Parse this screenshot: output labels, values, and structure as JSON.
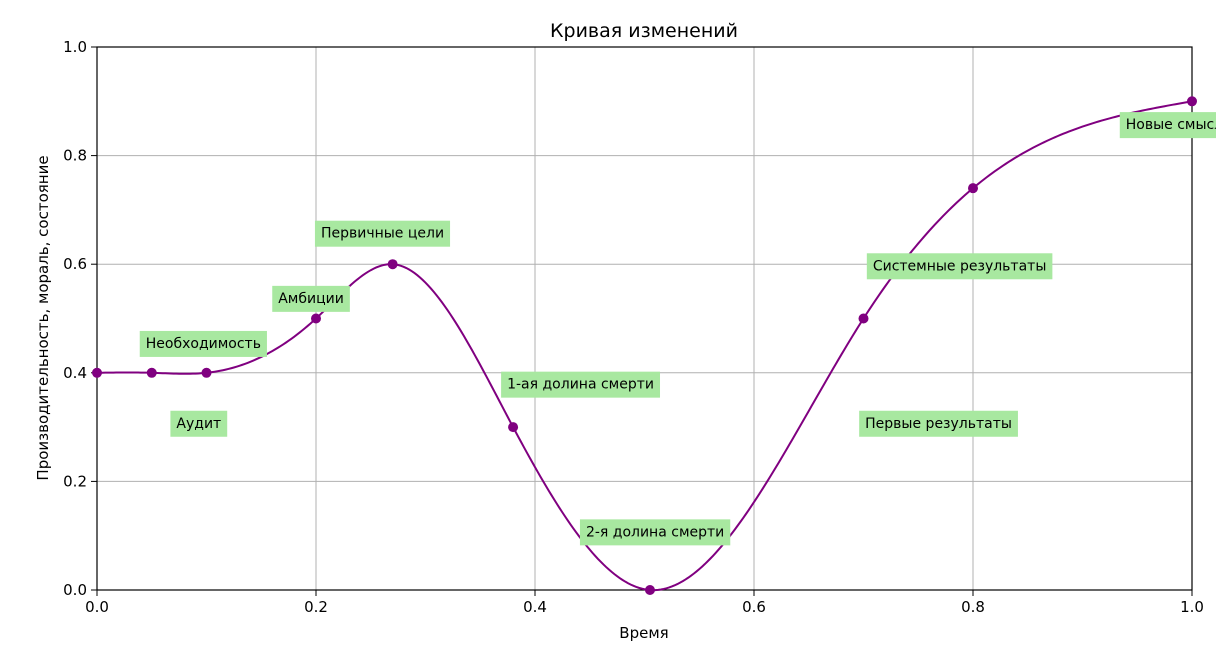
{
  "chart_data": {
    "type": "line",
    "title": "Кривая изменений",
    "xlabel": "Время",
    "ylabel": "Производительность, мораль, состояние",
    "xlim": [
      0,
      1
    ],
    "ylim": [
      0,
      1
    ],
    "grid": true,
    "x_ticks": [
      "0.0",
      "0.2",
      "0.4",
      "0.6",
      "0.8",
      "1.0"
    ],
    "y_ticks": [
      "0.0",
      "0.2",
      "0.4",
      "0.6",
      "0.8",
      "1.0"
    ],
    "series": [
      {
        "x": [
          0.0,
          0.05,
          0.1,
          0.2,
          0.27,
          0.38,
          0.505,
          0.7,
          0.8,
          1.0
        ],
        "y": [
          0.4,
          0.4,
          0.4,
          0.5,
          0.6,
          0.3,
          0.0,
          0.5,
          0.74,
          0.9
        ]
      }
    ],
    "annotations": [
      {
        "text": "Необходимость",
        "x": 0.05,
        "y": 0.455
      },
      {
        "text": "Аудит",
        "x": 0.078,
        "y": 0.308
      },
      {
        "text": "Амбиции",
        "x": 0.171,
        "y": 0.538
      },
      {
        "text": "Первичные цели",
        "x": 0.21,
        "y": 0.658
      },
      {
        "text": "1-ая долина смерти",
        "x": 0.38,
        "y": 0.38
      },
      {
        "text": "2-я долина смерти",
        "x": 0.452,
        "y": 0.108
      },
      {
        "text": "Первые результаты",
        "x": 0.707,
        "y": 0.308
      },
      {
        "text": "Системные результаты",
        "x": 0.714,
        "y": 0.598
      },
      {
        "text": "Новые смыслы",
        "x": 0.945,
        "y": 0.858
      }
    ],
    "colors": {
      "line": "#800080",
      "marker": "#800080",
      "annotation_bg": "#a8e8a0",
      "grid": "#b0b0b0"
    }
  }
}
